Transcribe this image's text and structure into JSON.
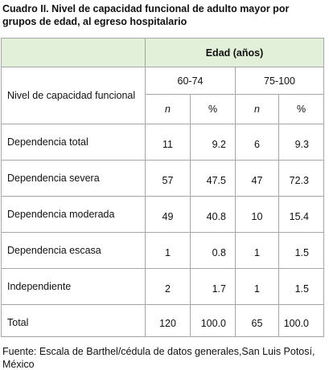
{
  "title": "Cuadro II. Nivel de capacidad funcional de adulto mayor por grupos de edad, al egreso hospitalario",
  "table": {
    "group_header": "Edad (años)",
    "row_header": "Nivel de capacidad funcional",
    "groups": [
      "60-74",
      "75-100"
    ],
    "subheaders": [
      "n",
      "%",
      "n",
      "%"
    ],
    "rows": [
      [
        "Dependencia total",
        "11",
        "9.2",
        "6",
        "9.3"
      ],
      [
        "Dependencia severa",
        "57",
        "47.5",
        "47",
        "72.3"
      ],
      [
        "Dependencia moderada",
        "49",
        "40.8",
        "10",
        "15.4"
      ],
      [
        "Dependencia escasa",
        "1",
        "0.8",
        "1",
        "1.5"
      ],
      [
        "Independiente",
        "2",
        "1.7",
        "1",
        "1.5"
      ],
      [
        "Total",
        "120",
        "100.0",
        "65",
        "100.0"
      ]
    ]
  },
  "footnote": "Fuente: Escala de Barthel/cédula de datos generales,San Luis Potosí, México"
}
